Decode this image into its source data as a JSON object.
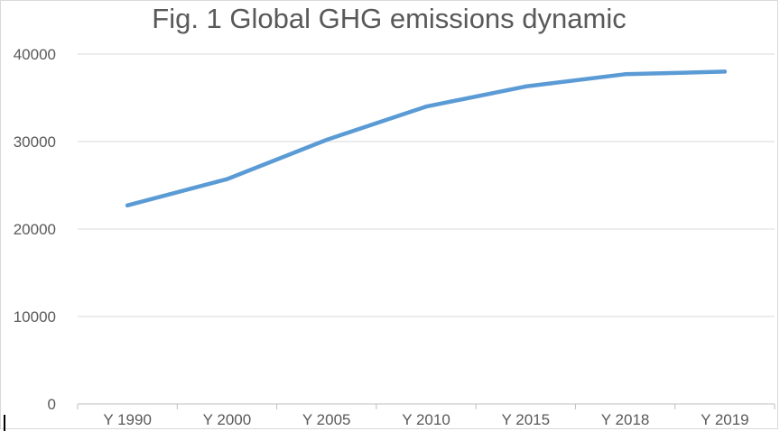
{
  "chart_data": {
    "type": "line",
    "title": "Fig. 1 Global GHG emissions dynamic",
    "xlabel": "",
    "ylabel": "",
    "categories": [
      "Y 1990",
      "Y 2000",
      "Y 2005",
      "Y 2010",
      "Y 2015",
      "Y 2018",
      "Y 2019"
    ],
    "series": [
      {
        "values": [
          22700,
          25700,
          30200,
          34000,
          36300,
          37700,
          38000
        ],
        "color": "#5b9bd5"
      }
    ],
    "ylim": [
      0,
      40000
    ],
    "yticks": [
      0,
      10000,
      20000,
      30000,
      40000
    ],
    "ytick_labels": [
      "0",
      "10000",
      "20000",
      "30000",
      "40000"
    ],
    "grid": true,
    "legend": "none"
  }
}
